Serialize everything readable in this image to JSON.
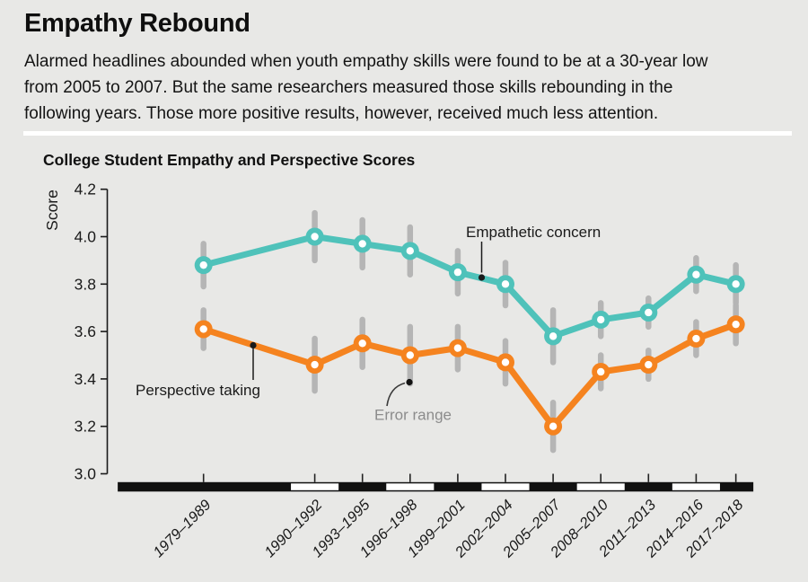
{
  "page": {
    "title": "Empathy Rebound",
    "subtitle": "Alarmed headlines abounded when youth empathy skills were found to be at a 30-year low from 2005 to 2007. But the same researchers measured those skills rebounding in the following years. Those more positive results, however, received much less attention.",
    "background_color": "#e8e8e6"
  },
  "chart_data": {
    "type": "line",
    "title": "College Student Empathy and Perspective Scores",
    "ylabel": "Score",
    "ylim": [
      3.0,
      4.2
    ],
    "yticks": [
      4.2,
      4.0,
      3.8,
      3.6,
      3.4,
      3.2,
      3.0
    ],
    "grid": false,
    "legend_position": "annotated-inline",
    "categories": [
      "1979–1989",
      "1990–1992",
      "1993–1995",
      "1996–1998",
      "1999–2001",
      "2002–2004",
      "2005–2007",
      "2008–2010",
      "2011–2013",
      "2014–2016",
      "2017–2018"
    ],
    "category_center_years": [
      1984,
      1991,
      1994,
      1997,
      2000,
      2003,
      2006,
      2009,
      2012,
      2015,
      2017.5
    ],
    "series": [
      {
        "name": "Empathetic concern",
        "color": "#4fc2ba",
        "values": [
          3.88,
          4.0,
          3.97,
          3.94,
          3.85,
          3.8,
          3.58,
          3.65,
          3.68,
          3.84,
          3.8
        ],
        "error": [
          0.09,
          0.1,
          0.1,
          0.1,
          0.09,
          0.09,
          0.11,
          0.07,
          0.06,
          0.07,
          0.08
        ]
      },
      {
        "name": "Perspective taking",
        "color": "#f5831f",
        "values": [
          3.61,
          3.46,
          3.55,
          3.5,
          3.53,
          3.47,
          3.2,
          3.43,
          3.46,
          3.57,
          3.63
        ],
        "error": [
          0.08,
          0.11,
          0.1,
          0.12,
          0.09,
          0.09,
          0.1,
          0.07,
          0.06,
          0.07,
          0.08
        ]
      }
    ],
    "annotations": [
      {
        "text": "Empathetic concern",
        "color": "#1a1a1a"
      },
      {
        "text": "Perspective taking",
        "color": "#1a1a1a"
      },
      {
        "text": "Error range",
        "color": "#8c8c8c"
      }
    ],
    "error_bar_color": "#b5b5b5",
    "marker_fill": "#ffffff",
    "axis_color": "#1a1a1a",
    "timeline_bar": {
      "start_year": 1978.6,
      "end_year": 2018.6,
      "segment_boundary_years": [
        1989.5,
        1992.5,
        1995.5,
        1998.5,
        2001.5,
        2004.5,
        2007.5,
        2010.5,
        2013.5,
        2016.5
      ],
      "first_segment_color": "black",
      "alt_segment_color": "white"
    }
  }
}
